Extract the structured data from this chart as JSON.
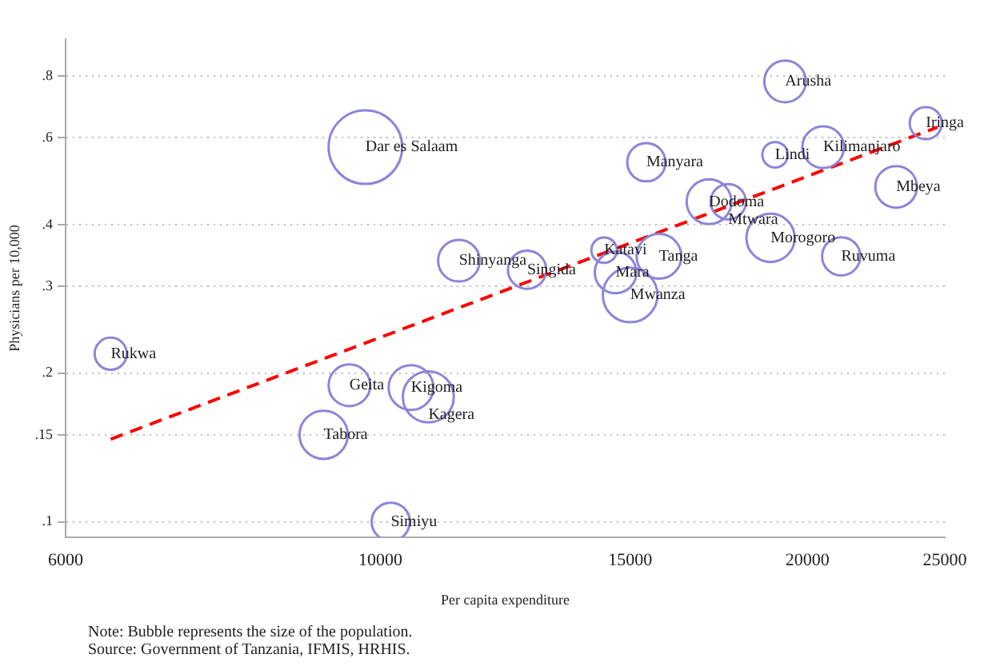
{
  "chart_data": {
    "type": "bubble",
    "xlabel": "Per capita expenditure",
    "ylabel": "Physicians per 10,000",
    "log": "xy",
    "xlim": [
      6000,
      25000
    ],
    "xticks": [
      6000,
      10000,
      15000,
      20000,
      25000
    ],
    "ylim": [
      0.093,
      0.95
    ],
    "yticks": [
      {
        "value": 0.1,
        "label": ".1"
      },
      {
        "value": 0.15,
        "label": ".15"
      },
      {
        "value": 0.2,
        "label": ".2"
      },
      {
        "value": 0.3,
        "label": ".3"
      },
      {
        "value": 0.4,
        "label": ".4"
      },
      {
        "value": 0.6,
        "label": ".6"
      },
      {
        "value": 0.8,
        "label": ".8"
      }
    ],
    "grid": "y",
    "legend": false,
    "marker": "circle",
    "series": [
      {
        "type": "bubble",
        "color": "#8c85d9",
        "x": [
          9760,
          11360,
          12690,
          14380,
          14650,
          15000,
          15720,
          15400,
          17050,
          17590,
          19290,
          18980,
          20520,
          24240,
          23100,
          18840,
          21130,
          6455,
          9510,
          10510,
          10810,
          9120,
          10170
        ],
        "values": [
          0.574,
          0.338,
          0.324,
          0.355,
          0.32,
          0.288,
          0.345,
          0.535,
          0.445,
          0.445,
          0.78,
          0.554,
          0.574,
          0.642,
          0.477,
          0.376,
          0.345,
          0.219,
          0.189,
          0.187,
          0.179,
          0.15,
          0.1
        ],
        "sizes": [
          1,
          0.32,
          0.27,
          0.12,
          0.32,
          0.55,
          0.37,
          0.27,
          0.37,
          0.23,
          0.32,
          0.12,
          0.32,
          0.19,
          0.32,
          0.43,
          0.27,
          0.19,
          0.32,
          0.37,
          0.48,
          0.43,
          0.27
        ]
      },
      {
        "type": "line",
        "color": "#ff0000",
        "line_style": "dashed",
        "marker": "none",
        "x": [
          6455,
          24700
        ],
        "values": [
          0.147,
          0.63
        ]
      }
    ],
    "annotations": [
      {
        "text": "Dar es Salaam",
        "x": 9760,
        "y": 0.574
      },
      {
        "text": "Shinyanga",
        "x": 11360,
        "y": 0.338
      },
      {
        "text": "Singida",
        "x": 12690,
        "y": 0.324
      },
      {
        "text": "Katavi",
        "x": 14380,
        "y": 0.355
      },
      {
        "text": "Mara",
        "x": 14650,
        "y": 0.32
      },
      {
        "text": "Mwanza",
        "x": 15000,
        "y": 0.288
      },
      {
        "text": "Tanga",
        "x": 15720,
        "y": 0.345
      },
      {
        "text": "Manyara",
        "x": 15400,
        "y": 0.535
      },
      {
        "text": "Dodoma",
        "x": 17050,
        "y": 0.445
      },
      {
        "text": "Mtwara",
        "x": 17590,
        "y": 0.445
      },
      {
        "text": "Arusha",
        "x": 19290,
        "y": 0.78
      },
      {
        "text": "Lindi",
        "x": 18980,
        "y": 0.554
      },
      {
        "text": "Kilimanjaro",
        "x": 20520,
        "y": 0.574
      },
      {
        "text": "Iringa",
        "x": 24240,
        "y": 0.642
      },
      {
        "text": "Mbeya",
        "x": 23100,
        "y": 0.477
      },
      {
        "text": "Morogoro",
        "x": 18840,
        "y": 0.376
      },
      {
        "text": "Ruvuma",
        "x": 21130,
        "y": 0.345
      },
      {
        "text": "Rukwa",
        "x": 6455,
        "y": 0.219
      },
      {
        "text": "Geita",
        "x": 9510,
        "y": 0.189
      },
      {
        "text": "Kigoma",
        "x": 10510,
        "y": 0.187
      },
      {
        "text": "Kagera",
        "x": 10810,
        "y": 0.179
      },
      {
        "text": "Tabora",
        "x": 9120,
        "y": 0.15
      },
      {
        "text": "Simiyu",
        "x": 10170,
        "y": 0.1
      },
      "Note: Bubble represents the size of the population.",
      "Source: Government of Tanzania, IFMIS, HRHIS."
    ]
  }
}
